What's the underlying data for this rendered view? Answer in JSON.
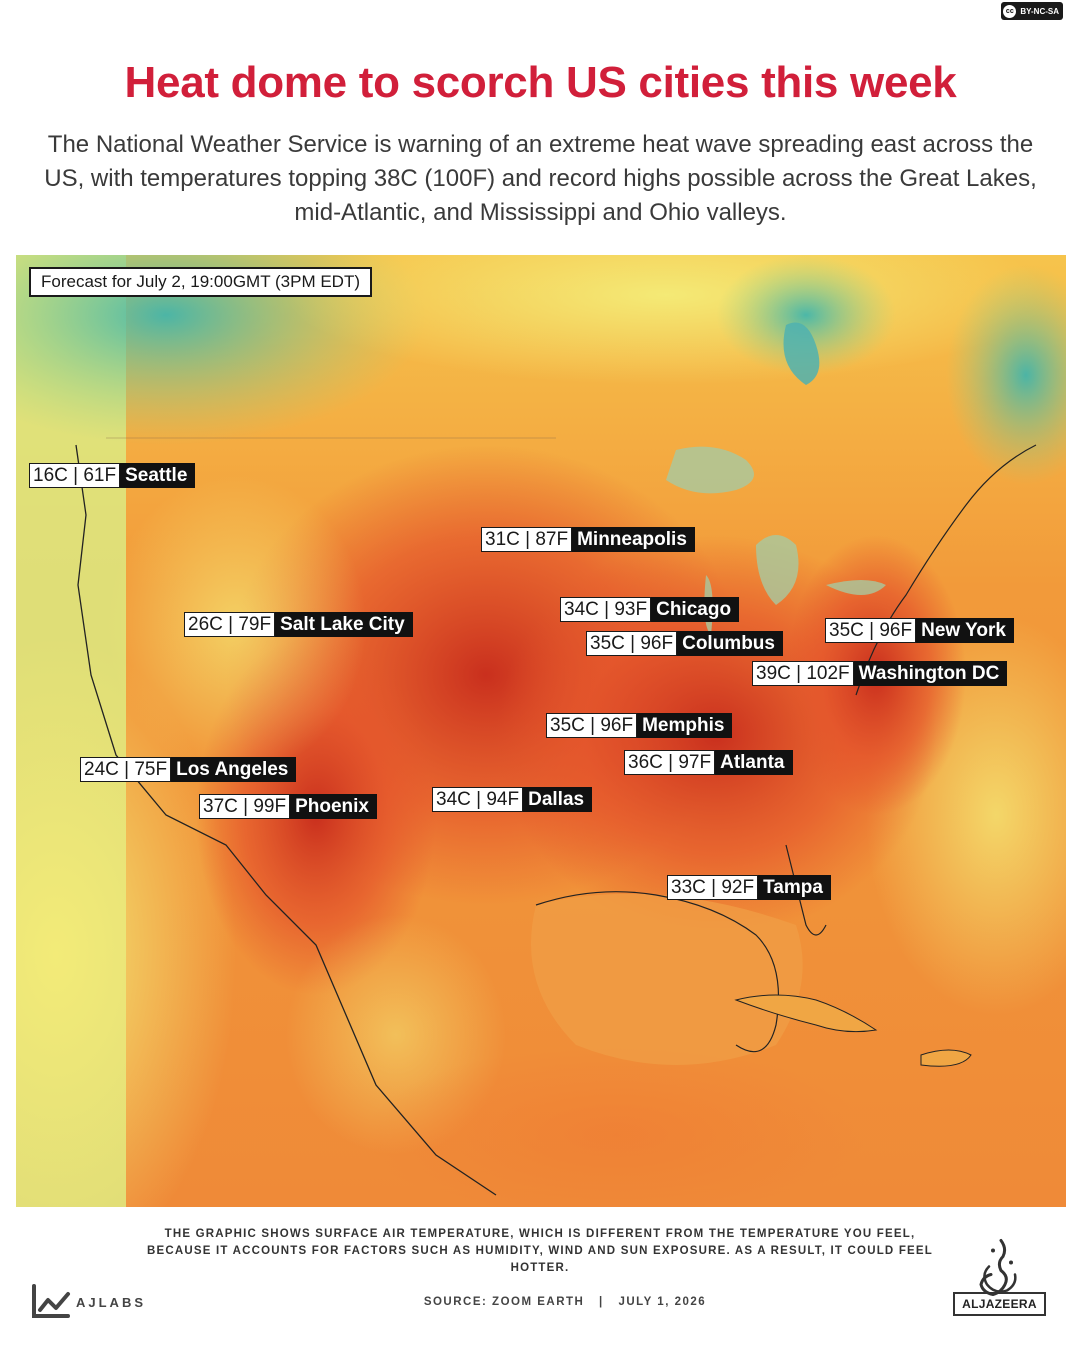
{
  "license": {
    "text": "BY-NC-SA",
    "icon": "cc-icon"
  },
  "headline": "Heat dome to scorch US cities this week",
  "subheadline": "The National Weather Service is warning of an extreme heat wave spreading east across the US, with temperatures topping 38C (100F) and record highs possible across the Great Lakes, mid-Atlantic, and Mississippi and Ohio valleys.",
  "map": {
    "forecast_label": "Forecast for July 2, 19:00GMT (3PM EDT)",
    "colors": {
      "cool": "#2fb0b8",
      "mild": "#f2e46a",
      "warm": "#f3a23a",
      "hot": "#e4532b",
      "extreme": "#c72a1c"
    },
    "cities": [
      {
        "temp": "16C | 61F",
        "name": "Seattle"
      },
      {
        "temp": "31C | 87F",
        "name": "Minneapolis"
      },
      {
        "temp": "34C | 93F",
        "name": "Chicago"
      },
      {
        "temp": "26C | 79F",
        "name": "Salt Lake City"
      },
      {
        "temp": "35C | 96F",
        "name": "Columbus"
      },
      {
        "temp": "35C | 96F",
        "name": "New York"
      },
      {
        "temp": "39C | 102F",
        "name": "Washington DC"
      },
      {
        "temp": "35C | 96F",
        "name": "Memphis"
      },
      {
        "temp": "36C | 97F",
        "name": "Atlanta"
      },
      {
        "temp": "24C | 75F",
        "name": "Los Angeles"
      },
      {
        "temp": "37C | 99F",
        "name": "Phoenix"
      },
      {
        "temp": "34C | 94F",
        "name": "Dallas"
      },
      {
        "temp": "33C | 92F",
        "name": "Tampa"
      }
    ]
  },
  "footer": {
    "note": "THE GRAPHIC SHOWS SURFACE AIR TEMPERATURE, WHICH IS DIFFERENT FROM THE TEMPERATURE YOU FEEL, BECAUSE IT ACCOUNTS FOR FACTORS SUCH AS HUMIDITY, WIND AND SUN EXPOSURE. AS A RESULT, IT COULD FEEL HOTTER.",
    "ajlabs": "AJLABS",
    "source": "SOURCE: ZOOM EARTH",
    "separator": "|",
    "date": "JULY 1, 2026",
    "wordmark": "ALJAZEERA"
  }
}
